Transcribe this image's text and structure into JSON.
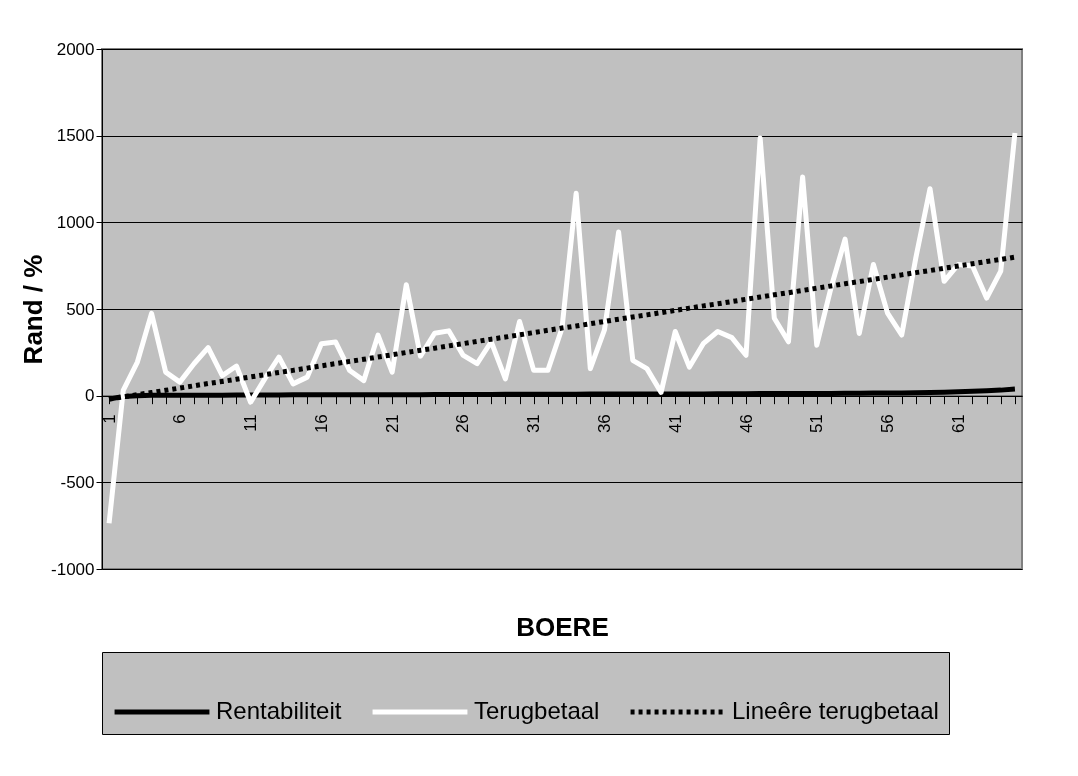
{
  "chart_data": {
    "type": "line",
    "xlabel": "BOERE",
    "ylabel": "Rand / %",
    "categories": [
      "1",
      null,
      null,
      null,
      null,
      "6",
      null,
      null,
      null,
      null,
      "11",
      null,
      null,
      null,
      null,
      "16",
      null,
      null,
      null,
      null,
      "21",
      null,
      null,
      null,
      null,
      "26",
      null,
      null,
      null,
      null,
      "31",
      null,
      null,
      null,
      null,
      "36",
      null,
      null,
      null,
      null,
      "41",
      null,
      null,
      null,
      null,
      "46",
      null,
      null,
      null,
      null,
      "51",
      null,
      null,
      null,
      null,
      "56",
      null,
      null,
      null,
      null,
      "61",
      null,
      null,
      null,
      null
    ],
    "ylim": [
      -1000,
      2000
    ],
    "yticks": [
      -1000,
      -500,
      0,
      500,
      1000,
      1500,
      2000
    ],
    "grid": "y",
    "legend": "bottom",
    "series": [
      {
        "name": "Rentabiliteit",
        "color": "#000000",
        "line_style": "solid",
        "values": [
          -20,
          -5,
          0,
          2,
          2,
          3,
          3,
          3,
          3,
          4,
          4,
          4,
          4,
          5,
          5,
          5,
          5,
          5,
          6,
          6,
          6,
          6,
          6,
          7,
          7,
          7,
          7,
          7,
          8,
          8,
          8,
          8,
          8,
          8,
          9,
          9,
          9,
          9,
          9,
          10,
          10,
          10,
          10,
          11,
          11,
          11,
          12,
          12,
          12,
          13,
          13,
          13,
          14,
          14,
          15,
          15,
          16,
          17,
          18,
          20,
          22,
          25,
          28,
          32,
          38
        ]
      },
      {
        "name": "Terugbetaal",
        "color": "#ffffff",
        "line_style": "solid",
        "values": [
          -736,
          30,
          194,
          475,
          136,
          78,
          184,
          277,
          116,
          171,
          -38,
          97,
          223,
          68,
          107,
          300,
          310,
          145,
          87,
          349,
          136,
          640,
          228,
          360,
          374,
          234,
          185,
          311,
          97,
          428,
          146,
          146,
          389,
          1168,
          156,
          379,
          944,
          204,
          156,
          19,
          370,
          165,
          302,
          370,
          335,
          233,
          1486,
          447,
          311,
          1262,
          291,
          621,
          903,
          359,
          757,
          476,
          350,
          796,
          1194,
          660,
          757,
          748,
          563,
          719,
          1515
        ]
      },
      {
        "name": "Lineêre terugbetaal",
        "color": "#000000",
        "line_style": "dotted",
        "values": [
          -20,
          -7,
          6,
          18,
          31,
          44,
          57,
          70,
          82,
          95,
          108,
          121,
          134,
          146,
          159,
          172,
          185,
          198,
          210,
          223,
          236,
          249,
          262,
          274,
          287,
          300,
          313,
          326,
          338,
          351,
          364,
          377,
          390,
          402,
          415,
          428,
          441,
          454,
          466,
          479,
          492,
          505,
          518,
          530,
          543,
          556,
          569,
          582,
          594,
          607,
          620,
          633,
          646,
          658,
          671,
          684,
          697,
          710,
          722,
          735,
          748,
          761,
          774,
          786,
          799
        ]
      }
    ]
  }
}
